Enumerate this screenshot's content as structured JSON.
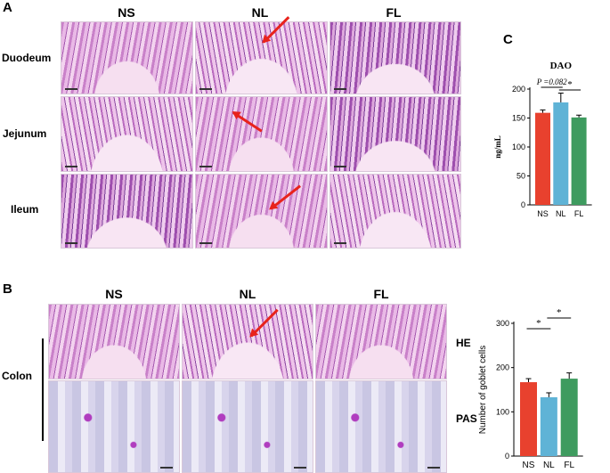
{
  "panel_a": {
    "letter": "A",
    "columns": [
      "NS",
      "NL",
      "FL"
    ],
    "rows": [
      "Duodeum",
      "Jejunum",
      "Ileum"
    ]
  },
  "panel_b": {
    "letter": "B",
    "columns": [
      "NS",
      "NL",
      "FL"
    ],
    "group_label": "Colon",
    "row_labels": [
      "HE",
      "PAS"
    ]
  },
  "panel_c": {
    "letter": "C"
  },
  "colors": {
    "NS": "#e8412e",
    "NL": "#5fb3d6",
    "FL": "#3e9b5f",
    "arrow": "#e8231c"
  },
  "chart_data": [
    {
      "type": "bar",
      "title": "DAO",
      "ylabel": "ng/mL",
      "xlabel": "",
      "categories": [
        "NS",
        "NL",
        "FL"
      ],
      "values": [
        159,
        177,
        151
      ],
      "errors": [
        5,
        16,
        4
      ],
      "ylim": [
        0,
        200
      ],
      "yticks": [
        0,
        50,
        100,
        150,
        200
      ],
      "annotations": [
        {
          "text": "P =0.082",
          "between": [
            "NS",
            "NL"
          ]
        },
        {
          "text": "*",
          "between": [
            "NL",
            "FL"
          ]
        }
      ]
    },
    {
      "type": "bar",
      "title": "",
      "ylabel": "Number of goblet cells",
      "xlabel": "",
      "categories": [
        "NS",
        "NL",
        "FL"
      ],
      "values": [
        167,
        133,
        175
      ],
      "errors": [
        8,
        10,
        13
      ],
      "ylim": [
        0,
        300
      ],
      "yticks": [
        0,
        100,
        200,
        300
      ],
      "annotations": [
        {
          "text": "*",
          "between": [
            "NS",
            "NL"
          ]
        },
        {
          "text": "*",
          "between": [
            "NL",
            "FL"
          ]
        }
      ]
    }
  ]
}
